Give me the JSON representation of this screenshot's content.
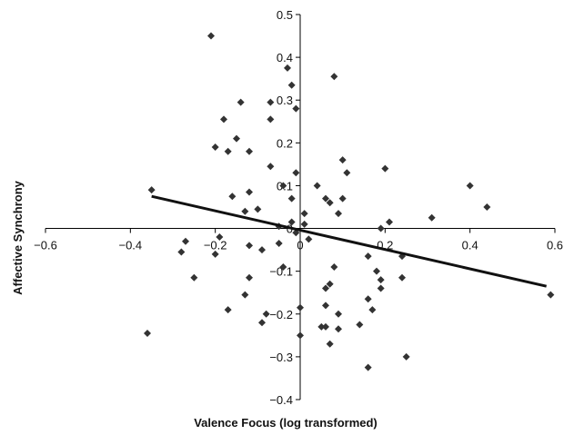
{
  "chart_data": {
    "type": "scatter",
    "title": "",
    "xlabel": "Valence Focus (log transformed)",
    "ylabel": "Affective Synchrony",
    "xlim": [
      -0.6,
      0.6
    ],
    "ylim": [
      -0.4,
      0.5
    ],
    "x_ticks": [
      "−0.6",
      "−0.4",
      "−0.2",
      "0",
      "0.2",
      "0.4",
      "0.6"
    ],
    "y_ticks": [
      "0.5",
      "0.4",
      "0.3",
      "0.2",
      "0.1",
      "0",
      "−0.1",
      "−0.2",
      "−0.3",
      "−0.4"
    ],
    "grid": false,
    "legend": "none",
    "marker": "diamond",
    "marker_color": "#333333",
    "line_color": "#111111",
    "trendline": {
      "x": [
        -0.35,
        0.58
      ],
      "y": [
        0.075,
        -0.135
      ]
    },
    "points": [
      [
        -0.21,
        0.45
      ],
      [
        -0.35,
        0.09
      ],
      [
        -0.36,
        -0.245
      ],
      [
        -0.27,
        -0.03
      ],
      [
        -0.28,
        -0.055
      ],
      [
        -0.25,
        -0.115
      ],
      [
        -0.2,
        0.19
      ],
      [
        -0.2,
        -0.06
      ],
      [
        -0.19,
        -0.02
      ],
      [
        -0.18,
        0.255
      ],
      [
        -0.17,
        0.18
      ],
      [
        -0.17,
        -0.19
      ],
      [
        -0.16,
        0.075
      ],
      [
        -0.15,
        0.21
      ],
      [
        -0.14,
        0.295
      ],
      [
        -0.13,
        0.04
      ],
      [
        -0.13,
        -0.155
      ],
      [
        -0.12,
        0.18
      ],
      [
        -0.12,
        0.085
      ],
      [
        -0.12,
        -0.04
      ],
      [
        -0.12,
        -0.115
      ],
      [
        -0.1,
        0.045
      ],
      [
        -0.09,
        -0.05
      ],
      [
        -0.09,
        -0.22
      ],
      [
        -0.07,
        0.295
      ],
      [
        -0.07,
        0.255
      ],
      [
        -0.07,
        0.145
      ],
      [
        -0.08,
        -0.2
      ],
      [
        -0.05,
        0.005
      ],
      [
        -0.05,
        -0.035
      ],
      [
        -0.04,
        0.1
      ],
      [
        -0.03,
        0.375
      ],
      [
        -0.04,
        -0.09
      ],
      [
        -0.02,
        0.335
      ],
      [
        -0.02,
        0.07
      ],
      [
        -0.02,
        0.015
      ],
      [
        -0.01,
        0.28
      ],
      [
        -0.01,
        0.13
      ],
      [
        -0.01,
        -0.01
      ],
      [
        0.0,
        -0.185
      ],
      [
        0.0,
        -0.25
      ],
      [
        0.01,
        0.01
      ],
      [
        0.01,
        0.035
      ],
      [
        0.02,
        -0.025
      ],
      [
        0.04,
        0.1
      ],
      [
        0.05,
        -0.23
      ],
      [
        0.06,
        0.07
      ],
      [
        0.06,
        -0.14
      ],
      [
        0.06,
        -0.18
      ],
      [
        0.06,
        -0.23
      ],
      [
        0.07,
        0.06
      ],
      [
        0.07,
        -0.13
      ],
      [
        0.07,
        -0.27
      ],
      [
        0.08,
        0.355
      ],
      [
        0.08,
        -0.09
      ],
      [
        0.09,
        0.035
      ],
      [
        0.09,
        -0.2
      ],
      [
        0.09,
        -0.235
      ],
      [
        0.1,
        0.07
      ],
      [
        0.1,
        0.16
      ],
      [
        0.11,
        0.13
      ],
      [
        0.14,
        -0.225
      ],
      [
        0.16,
        -0.065
      ],
      [
        0.16,
        -0.165
      ],
      [
        0.16,
        -0.325
      ],
      [
        0.17,
        -0.19
      ],
      [
        0.18,
        -0.1
      ],
      [
        0.19,
        0.0
      ],
      [
        0.19,
        -0.12
      ],
      [
        0.19,
        -0.14
      ],
      [
        0.2,
        0.14
      ],
      [
        0.21,
        0.015
      ],
      [
        0.24,
        -0.065
      ],
      [
        0.24,
        -0.115
      ],
      [
        0.25,
        -0.3
      ],
      [
        0.31,
        0.025
      ],
      [
        0.4,
        0.1
      ],
      [
        0.44,
        0.05
      ],
      [
        0.59,
        -0.155
      ]
    ]
  }
}
